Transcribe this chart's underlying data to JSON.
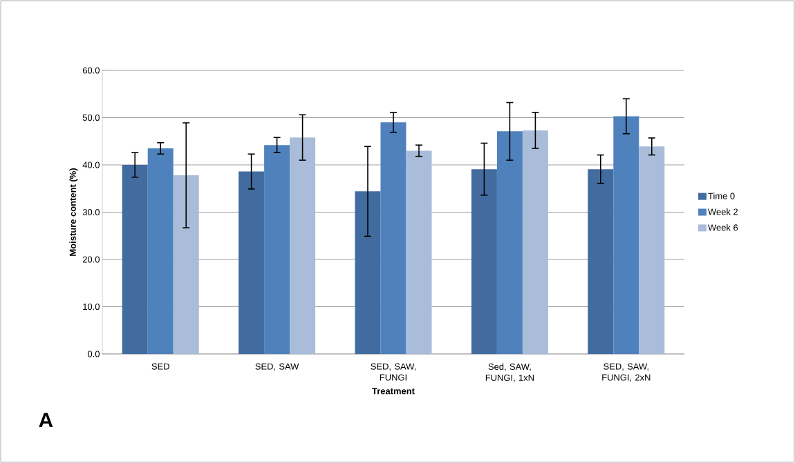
{
  "chart_data": {
    "type": "bar",
    "xlabel": "Treatment",
    "ylabel": "Moisture content (%)",
    "categories": [
      "SED",
      "SED, SAW",
      "SED, SAW, FUNGI",
      "Sed, SAW, FUNGI, 1xN",
      "SED, SAW, FUNGI, 2xN"
    ],
    "series": [
      {
        "name": "Time 0",
        "color": "#426ca0",
        "values": [
          40.0,
          38.6,
          34.4,
          39.1,
          39.1
        ],
        "errors": [
          2.6,
          3.7,
          9.5,
          5.5,
          3.0
        ]
      },
      {
        "name": "Week 2",
        "color": "#4f81bd",
        "values": [
          43.5,
          44.2,
          49.0,
          47.1,
          50.3
        ],
        "errors": [
          1.2,
          1.6,
          2.1,
          6.1,
          3.7
        ]
      },
      {
        "name": "Week 6",
        "color": "#a9bcd9",
        "values": [
          37.8,
          45.8,
          43.0,
          47.3,
          43.9
        ],
        "errors": [
          11.1,
          4.8,
          1.2,
          3.8,
          1.8
        ]
      }
    ],
    "ylim": [
      0,
      60
    ],
    "yticks": [
      {
        "value": 0,
        "label": "0.0"
      },
      {
        "value": 10,
        "label": "10.0"
      },
      {
        "value": 20,
        "label": "20.0"
      },
      {
        "value": 30,
        "label": "30.0"
      },
      {
        "value": 40,
        "label": "40.0"
      },
      {
        "value": 50,
        "label": "50.0"
      },
      {
        "value": 60,
        "label": "60.0"
      }
    ],
    "grid": "y",
    "legend": "right",
    "annotations": [
      "A"
    ]
  }
}
